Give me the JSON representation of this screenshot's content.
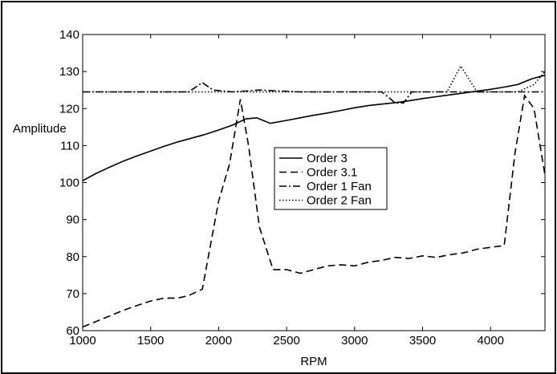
{
  "chart_data": {
    "type": "line",
    "title": "",
    "xlabel": "RPM",
    "ylabel": "Amplitude",
    "xlim": [
      1000,
      4400
    ],
    "ylim": [
      60,
      140
    ],
    "x_ticks": [
      1000,
      1500,
      2000,
      2500,
      3000,
      3500,
      4000
    ],
    "y_ticks": [
      60,
      70,
      80,
      90,
      100,
      110,
      120,
      130,
      140
    ],
    "grid": false,
    "legend_position": "center",
    "series": [
      {
        "name": "Order 3",
        "style": "solid",
        "color": "#000000",
        "x": [
          1000,
          1100,
          1200,
          1300,
          1400,
          1500,
          1600,
          1700,
          1800,
          1900,
          2000,
          2100,
          2200,
          2280,
          2380,
          2500,
          2600,
          2700,
          2800,
          2900,
          3000,
          3100,
          3200,
          3300,
          3400,
          3500,
          3600,
          3700,
          3800,
          3900,
          4000,
          4100,
          4200,
          4300,
          4400
        ],
        "y": [
          100.5,
          102.5,
          104.2,
          105.8,
          107.2,
          108.5,
          109.8,
          111,
          112,
          113,
          114.2,
          115.5,
          117.2,
          117.5,
          116,
          116.8,
          117.5,
          118.2,
          118.8,
          119.5,
          120.2,
          120.8,
          121.2,
          121.6,
          122.1,
          122.7,
          123.2,
          123.7,
          124.2,
          124.7,
          125.2,
          125.8,
          126.5,
          128,
          129
        ]
      },
      {
        "name": "Order 3.1",
        "style": "dashed",
        "color": "#000000",
        "x": [
          1000,
          1100,
          1200,
          1300,
          1400,
          1500,
          1600,
          1700,
          1780,
          1880,
          2000,
          2080,
          2160,
          2220,
          2300,
          2400,
          2500,
          2600,
          2700,
          2800,
          2900,
          3000,
          3100,
          3200,
          3300,
          3400,
          3500,
          3600,
          3700,
          3800,
          3900,
          4000,
          4100,
          4180,
          4250,
          4320,
          4400
        ],
        "y": [
          61,
          62.5,
          64,
          65.5,
          66.8,
          68,
          68.8,
          68.8,
          69.5,
          71.2,
          95,
          105,
          122.5,
          110,
          88,
          76.5,
          76.5,
          75.5,
          76.5,
          77.5,
          77.8,
          77.5,
          78.5,
          79,
          79.8,
          79.5,
          80.2,
          79.8,
          80.5,
          81,
          82,
          82.5,
          83,
          108,
          123.5,
          120,
          102
        ]
      },
      {
        "name": "Order 1 Fan",
        "style": "dashdot",
        "color": "#000000",
        "x": [
          1000,
          1500,
          1780,
          1880,
          1960,
          2100,
          2300,
          2600,
          3000,
          3200,
          3300,
          3360,
          3420,
          3600,
          3800,
          4000,
          4200,
          4400
        ],
        "y": [
          124.5,
          124.5,
          124.5,
          127,
          125,
          124.5,
          125,
          124.5,
          124.5,
          124.5,
          121.5,
          121.5,
          124.5,
          124.5,
          124.5,
          124.5,
          124.5,
          124.5
        ]
      },
      {
        "name": "Order 2 Fan",
        "style": "dotted",
        "color": "#000000",
        "x": [
          1000,
          1500,
          2000,
          2500,
          3000,
          3500,
          3680,
          3780,
          3900,
          4000,
          4200,
          4320,
          4400
        ],
        "y": [
          124.5,
          124.5,
          124.5,
          124.5,
          124.5,
          124.5,
          124.5,
          131.5,
          124.5,
          124.5,
          124.5,
          126.5,
          130
        ]
      }
    ]
  }
}
